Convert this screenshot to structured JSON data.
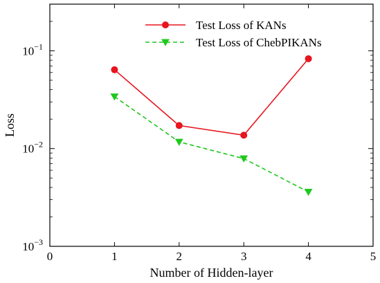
{
  "chart_data": {
    "type": "line",
    "xlabel": "Number of Hidden-layer",
    "ylabel": "Loss",
    "xlim": [
      0,
      5
    ],
    "ylim": [
      0.001,
      0.3
    ],
    "yscale": "log",
    "x_ticks": [
      0,
      1,
      2,
      3,
      4,
      5
    ],
    "y_ticks": [
      {
        "value": 0.001,
        "base": "10",
        "exp": "−3"
      },
      {
        "value": 0.01,
        "base": "10",
        "exp": "−2"
      },
      {
        "value": 0.1,
        "base": "10",
        "exp": "−1"
      }
    ],
    "grid": false,
    "legend_position": "top-right",
    "x": [
      1,
      2,
      3,
      4
    ],
    "series": [
      {
        "name": "Test Loss of KANs",
        "values": [
          0.064,
          0.0172,
          0.0137,
          0.083
        ],
        "color": "#e8141e",
        "line": "solid",
        "marker": "circle"
      },
      {
        "name": "Test Loss of ChebPIKANs",
        "values": [
          0.034,
          0.0117,
          0.0079,
          0.0036
        ],
        "color": "#1ec81e",
        "line": "dashed",
        "marker": "triangle-down"
      }
    ]
  }
}
